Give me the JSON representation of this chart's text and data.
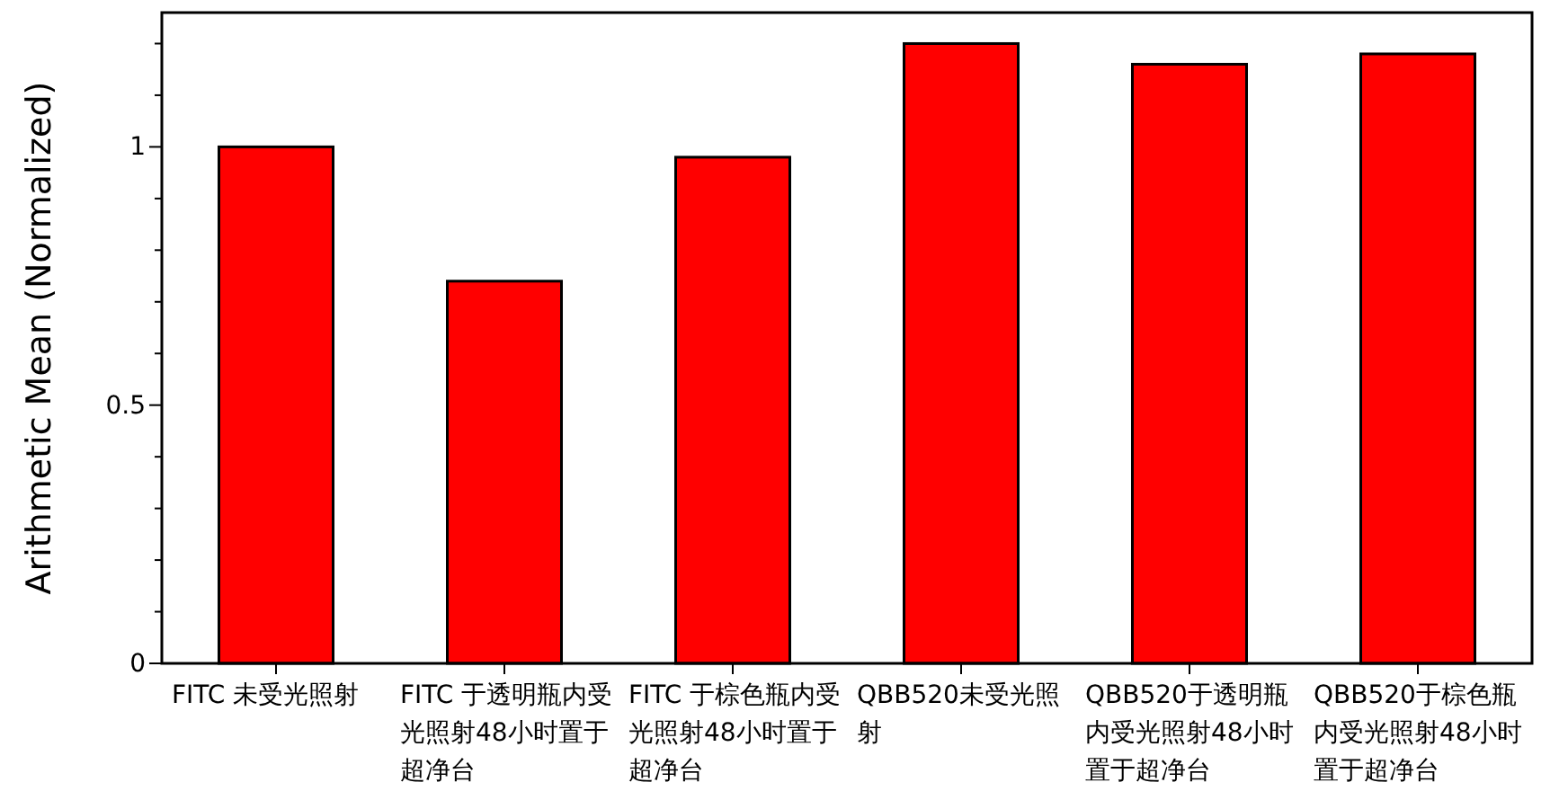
{
  "chart_data": {
    "type": "bar",
    "ylabel": "Arithmetic Mean (Normalized)",
    "categories": [
      "FITC 未受光照射",
      "FITC 于透明瓶内受光照射48小时置于超净台",
      "FITC 于棕色瓶内受光照射48小时置于超净台",
      "QBB520未受光照射",
      "QBB520于透明瓶内受光照射48小时置于超净台",
      "QBB520于棕色瓶内受光照射48小时置于超净台"
    ],
    "values": [
      1.0,
      0.74,
      0.98,
      1.2,
      1.16,
      1.18
    ],
    "color": "#ff0000",
    "ylim": [
      0,
      1.26
    ],
    "yticks": [
      0,
      {
        "value": 0.1,
        "label": null
      },
      {
        "value": 0.2,
        "label": null
      },
      {
        "value": 0.3,
        "label": null
      },
      {
        "value": 0.4,
        "label": null
      },
      0.5,
      {
        "value": 0.6,
        "label": null
      },
      {
        "value": 0.7,
        "label": null
      },
      {
        "value": 0.8,
        "label": null
      },
      {
        "value": 0.9,
        "label": null
      },
      1,
      {
        "value": 1.1,
        "label": null
      },
      {
        "value": 1.2,
        "label": null
      }
    ],
    "grid": false
  }
}
